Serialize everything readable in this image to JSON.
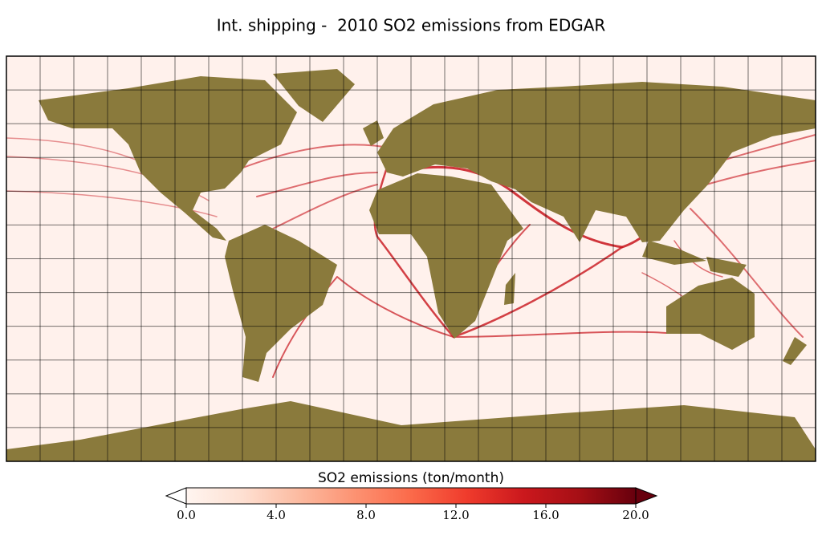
{
  "title": "Int. shipping -  2010 SO2 emissions from EDGAR",
  "colorbar": {
    "label": "SO2 emissions (ton/month)",
    "lim": [
      0,
      20
    ],
    "ticks": [
      {
        "value": 0,
        "label": "0.0"
      },
      {
        "value": 4,
        "label": "4.0"
      },
      {
        "value": 8,
        "label": "8.0"
      },
      {
        "value": 12,
        "label": "12.0"
      },
      {
        "value": 16,
        "label": "16.0"
      },
      {
        "value": 20,
        "label": "20.0"
      }
    ]
  }
}
